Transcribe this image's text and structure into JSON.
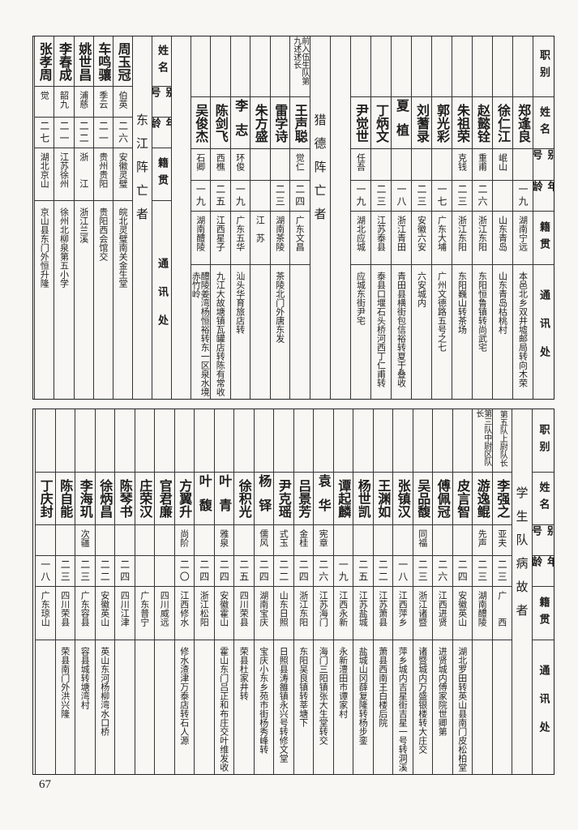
{
  "page_number": "67",
  "headers": {
    "post": "职别",
    "name": "姓名",
    "alias": "别号",
    "age": "年龄",
    "native": "籍贯",
    "address": "通讯处"
  },
  "top": {
    "group1": {
      "rows": [
        {
          "post": "",
          "name": "郑逢良",
          "alias": "",
          "age": "一九",
          "native": "湖南宁远",
          "address": "本邑北乡双井墟邮局转向木荣"
        },
        {
          "post": "",
          "name": "徐仁江",
          "alias": "岷山",
          "age": "",
          "native": "山东青岛",
          "address": "山东青岛枯桃村"
        },
        {
          "post": "",
          "name": "赵懿铨",
          "alias": "重甫",
          "age": "二六",
          "native": "浙江东阳",
          "address": "东阳恒鲁镇转尚武宅"
        },
        {
          "post": "",
          "name": "朱祖荣",
          "alias": "克钱",
          "age": "二三",
          "native": "浙江东阳",
          "address": "东阳巍山转茶场"
        },
        {
          "post": "",
          "name": "郭光彩",
          "alias": "",
          "age": "一七",
          "native": "广东大埔",
          "address": "广州文德路五号之七"
        },
        {
          "post": "",
          "name": "刘蓍录",
          "alias": "",
          "age": "二三",
          "native": "安徽六安",
          "address": "六安城内"
        },
        {
          "post": "",
          "name": "夏植",
          "alias": "",
          "age": "一八",
          "native": "浙江青田",
          "address": "青田县横街包信裕转夏于叠收"
        },
        {
          "post": "",
          "name": "丁炳文",
          "alias": "",
          "age": "二三",
          "native": "江苏泰县",
          "address": "泰县口堰石头桥河西丁仁甫转"
        },
        {
          "post": "",
          "name": "尹觉世",
          "alias": "任吾",
          "age": "一九",
          "native": "湖北应城",
          "address": "应城东街尹宅"
        }
      ]
    },
    "group2": {
      "label": "猎德阵亡者",
      "rows": [
        {
          "post": "前入伍生队第九述述长",
          "name": "王声聪",
          "alias": "觉仁",
          "age": "二四",
          "native": "广东文昌",
          "address": ""
        },
        {
          "post": "",
          "name": "雷学诗",
          "alias": "",
          "age": "二三",
          "native": "湖南茶陵",
          "address": "茶陵北门外唐东发"
        },
        {
          "post": "",
          "name": "朱方盛",
          "alias": "",
          "age": "",
          "native": "江　苏",
          "address": ""
        },
        {
          "post": "",
          "name": "李志",
          "alias": "环俊",
          "age": "一九",
          "native": "广东五华",
          "address": "汕头华育旅店转"
        },
        {
          "post": "",
          "name": "陈剑飞",
          "alias": "西樵",
          "age": "二五",
          "native": "江西星子",
          "address": "九江大故塘镇瓦罐店转陈有常收"
        },
        {
          "post": "",
          "name": "吴俊杰",
          "alias": "石卿",
          "age": "一九",
          "native": "湖南醴陵",
          "address": "醴陵姜湾杨恒裕转东一区泉水境赤竹岭"
        }
      ]
    },
    "group3": {
      "label": "东江阵亡者",
      "rows": [
        {
          "name": "周玉冠",
          "alias": "伯英",
          "age": "二六",
          "native": "安徽灵璧",
          "address": "皖北灵璧南关金生堂"
        },
        {
          "name": "车鸣骧",
          "alias": "季云",
          "age": "二一",
          "native": "贵州贵阳",
          "address": "贵阳西会馆交"
        },
        {
          "name": "姚世昌",
          "alias": "浦慈",
          "age": "二二",
          "native": "浙　　江",
          "address": "浙江兰溪"
        },
        {
          "name": "李春成",
          "alias": "韶九",
          "age": "二一",
          "native": "江苏徐州",
          "address": "徐州北柳泉第五小学"
        },
        {
          "name": "张孝周",
          "alias": "觉",
          "age": "二七",
          "native": "湖北京山",
          "address": "京山县东门外恒升隆"
        }
      ]
    }
  },
  "bottom": {
    "label": "学生队病故者",
    "rows": [
      {
        "post": "第五队上尉队长",
        "name": "李强之",
        "alias": "亚夫",
        "age": "二三",
        "native": "广　　西",
        "address": ""
      },
      {
        "post": "第三队中尉区队长",
        "name": "游逸鲲",
        "alias": "先声",
        "age": "二三",
        "native": "湖南醴陵",
        "address": ""
      },
      {
        "post": "",
        "name": "皮言智",
        "alias": "",
        "age": "二四",
        "native": "安徽英山",
        "address": "湖北罗田转英山县南门皮松柏堂"
      },
      {
        "post": "",
        "name": "傅佩冠",
        "alias": "",
        "age": "二六",
        "native": "江西进贤",
        "address": "进贤城内傅家院世卿第"
      },
      {
        "post": "",
        "name": "吴品馥",
        "alias": "同福",
        "age": "二三",
        "native": "浙江诸暨",
        "address": "诸暨城内万盛银楼转大庄交"
      },
      {
        "post": "",
        "name": "张镇汉",
        "alias": "",
        "age": "一八",
        "native": "江西萍乡",
        "address": "萍乡城内吉星街吉星一号转洞溪"
      },
      {
        "post": "",
        "name": "王渊如",
        "alias": "",
        "age": "二二",
        "native": "江苏萧县",
        "address": "萧县西南王白楼后院"
      },
      {
        "post": "",
        "name": "杨世凯",
        "alias": "",
        "age": "二五",
        "native": "江苏盐城",
        "address": "盐城山冈薛复隆转杨步銮"
      },
      {
        "post": "",
        "name": "谭起麟",
        "alias": "",
        "age": "一九",
        "native": "江西永新",
        "address": "永新澧田市谭家村"
      },
      {
        "post": "",
        "name": "袁华",
        "alias": "宪章",
        "age": "二六",
        "native": "江苏海门",
        "address": "海门三阳镇张大生堂转交"
      },
      {
        "post": "",
        "name": "吕景芳",
        "alias": "金桂",
        "age": "二四",
        "native": "浙江东阳",
        "address": "东阳吴良镇转莘塘下"
      },
      {
        "post": "",
        "name": "尹克瑶",
        "alias": "式玉",
        "age": "二二",
        "native": "山东日照",
        "address": "日照县涛雒镇永兴号转修文堂"
      },
      {
        "post": "",
        "name": "杨铎",
        "alias": "儒风",
        "age": "二四",
        "native": "湖南宝庆",
        "address": "宝庆小东乡苑市街杨秀峰转"
      },
      {
        "post": "",
        "name": "徐积光",
        "alias": "",
        "age": "二五",
        "native": "四川荣县",
        "address": "荣县杜家井转"
      },
      {
        "post": "",
        "name": "叶青",
        "alias": "雅泉",
        "age": "二四",
        "native": "安徽霍山",
        "address": "霍山东门吕正和布庄交叶维发收"
      },
      {
        "post": "",
        "name": "叶馥",
        "alias": "",
        "age": "二四",
        "native": "浙江松阳",
        "address": ""
      },
      {
        "post": "",
        "name": "方翼升",
        "alias": "尚阶",
        "age": "二〇",
        "native": "江西修水",
        "address": "修水渣津万泰店转石人源"
      },
      {
        "post": "",
        "name": "官君廉",
        "alias": "",
        "age": "",
        "native": "四川威远",
        "address": ""
      },
      {
        "post": "",
        "name": "庄荣汉",
        "alias": "",
        "age": "",
        "native": "广东普宁",
        "address": ""
      },
      {
        "post": "",
        "name": "陈琴书",
        "alias": "",
        "age": "二四",
        "native": "四川江津",
        "address": ""
      },
      {
        "post": "",
        "name": "徐炳昌",
        "alias": "",
        "age": "二二",
        "native": "安徽英山",
        "address": "英山东河杨柳湾水口桥"
      },
      {
        "post": "",
        "name": "李海玑",
        "alias": "次疆",
        "age": "二三",
        "native": "广东容县",
        "address": "容县城转塘湾村"
      },
      {
        "post": "",
        "name": "陈自能",
        "alias": "",
        "age": "二三",
        "native": "四川荣县",
        "address": "荣县南门外洪兴隆"
      },
      {
        "post": "",
        "name": "丁庆封",
        "alias": "",
        "age": "一八",
        "native": "广东琼山",
        "address": ""
      }
    ]
  }
}
